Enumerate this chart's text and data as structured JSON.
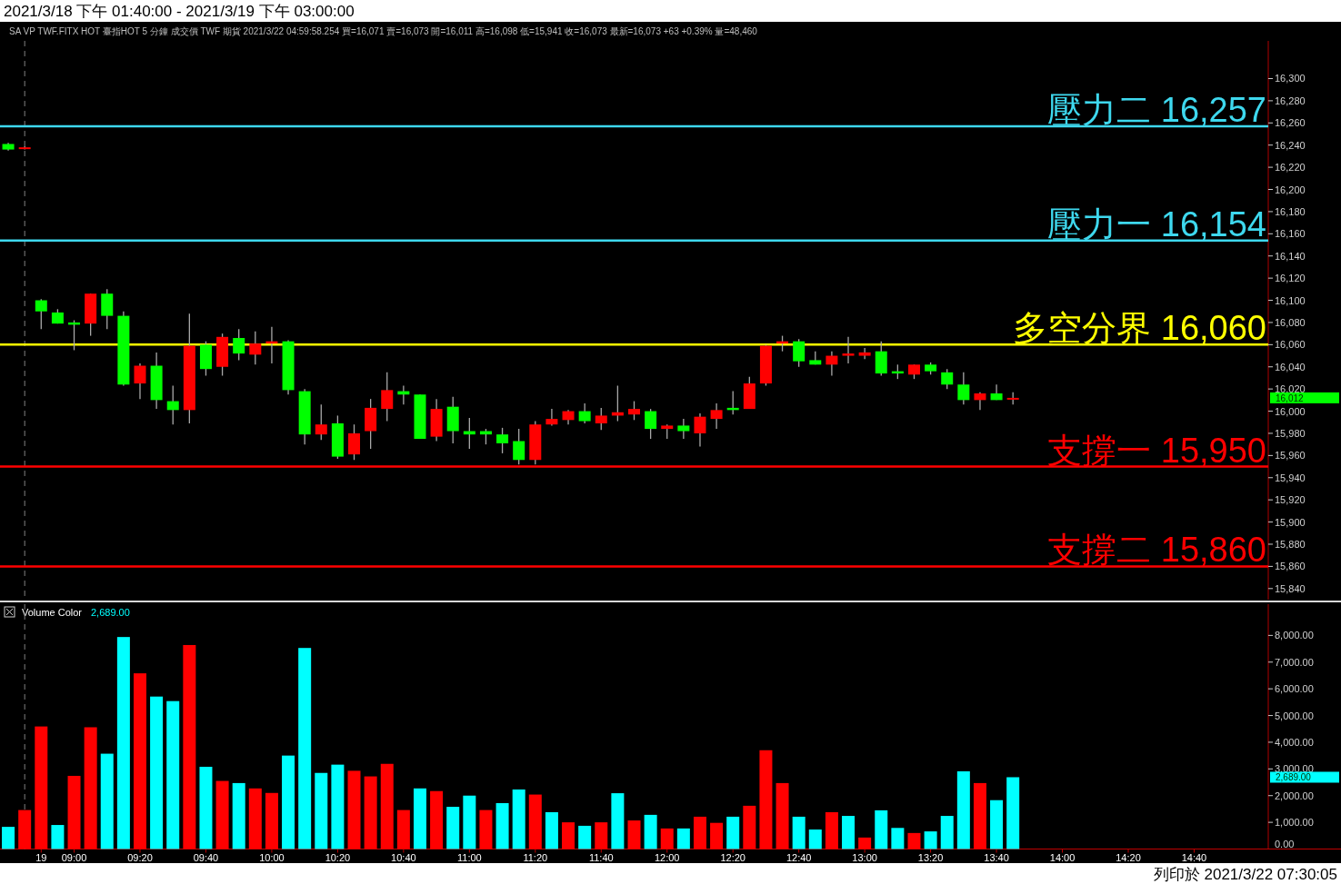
{
  "chart_data": [
    {
      "type": "candlestick",
      "title": "2021/3/18 下午 01:40:00 - 2021/3/19 下午 03:00:00",
      "subtitle": "SA  VP  TWF.FITX HOT  臺指HOT 5 分鐘  成交價  TWF  期貨  2021/3/22  04:59:58.254  買=16,071  賣=16,073  開=16,011  高=16,098  低=15,941  收=16,073  最新=16,073  +63  +0.39%  量=48,460",
      "categories": [
        null,
        null,
        null,
        null,
        null,
        null,
        null,
        null,
        null,
        null,
        null,
        null,
        null,
        null,
        null,
        null,
        null,
        null,
        null,
        null,
        null,
        null,
        null,
        null,
        null,
        null,
        null,
        null,
        null,
        null,
        null,
        null,
        null,
        null,
        null,
        null,
        null,
        null,
        null,
        null,
        null,
        null,
        null,
        null,
        null,
        null,
        null,
        null,
        null,
        null,
        null,
        null,
        null,
        null,
        null,
        null,
        null,
        null,
        null,
        null,
        null,
        null,
        null,
        null,
        null,
        null,
        null,
        null,
        null,
        null,
        null,
        null,
        null,
        null,
        null,
        null,
        null
      ],
      "ohlc": [
        [
          16241,
          16242,
          16235,
          16236
        ],
        [
          16237,
          16239,
          16236,
          16238
        ],
        [
          16100,
          16101,
          16074,
          16090
        ],
        [
          16089,
          16092,
          16079,
          16079
        ],
        [
          16080,
          16082,
          16055,
          16078
        ],
        [
          16079,
          16106,
          16068,
          16106
        ],
        [
          16106,
          16110,
          16074,
          16086
        ],
        [
          16086,
          16090,
          16023,
          16024
        ],
        [
          16025,
          16043,
          16011,
          16041
        ],
        [
          16041,
          16053,
          16002,
          16010
        ],
        [
          16009,
          16023,
          15988,
          16001
        ],
        [
          16001,
          16088,
          15989,
          16059
        ],
        [
          16060,
          16063,
          16032,
          16038
        ],
        [
          16040,
          16070,
          16032,
          16067
        ],
        [
          16066,
          16074,
          16046,
          16052
        ],
        [
          16051,
          16072,
          16042,
          16061
        ],
        [
          16061,
          16076,
          16043,
          16063
        ],
        [
          16063,
          16064,
          16015,
          16019
        ],
        [
          16018,
          16020,
          15970,
          15979
        ],
        [
          15979,
          16006,
          15974,
          15988
        ],
        [
          15989,
          15996,
          15957,
          15959
        ],
        [
          15961,
          15988,
          15956,
          15980
        ],
        [
          15982,
          16011,
          15966,
          16003
        ],
        [
          16002,
          16035,
          15991,
          16019
        ],
        [
          16018,
          16023,
          16006,
          16015
        ],
        [
          16015,
          16015,
          15975,
          15975
        ],
        [
          15977,
          16011,
          15973,
          16002
        ],
        [
          16004,
          16013,
          15971,
          15982
        ],
        [
          15982,
          15994,
          15966,
          15979
        ],
        [
          15982,
          15984,
          15970,
          15979
        ],
        [
          15979,
          15985,
          15962,
          15971
        ],
        [
          15973,
          15984,
          15952,
          15956
        ],
        [
          15956,
          15991,
          15952,
          15988
        ],
        [
          15988,
          16002,
          15987,
          15993
        ],
        [
          15992,
          16001,
          15988,
          16000
        ],
        [
          16000,
          16007,
          15989,
          15991
        ],
        [
          15989,
          16003,
          15983,
          15996
        ],
        [
          15996,
          16023,
          15991,
          15999
        ],
        [
          15997,
          16009,
          15992,
          16002
        ],
        [
          16000,
          16002,
          15975,
          15984
        ],
        [
          15984,
          15988,
          15975,
          15987
        ],
        [
          15987,
          15993,
          15975,
          15982
        ],
        [
          15980,
          15998,
          15968,
          15995
        ],
        [
          15993,
          16007,
          15984,
          16001
        ],
        [
          16003,
          16018,
          15997,
          16001
        ],
        [
          16002,
          16031,
          16002,
          16025
        ],
        [
          16025,
          16060,
          16023,
          16059
        ],
        [
          16061,
          16068,
          16054,
          16063
        ],
        [
          16063,
          16065,
          16040,
          16045
        ],
        [
          16046,
          16054,
          16042,
          16042
        ],
        [
          16042,
          16054,
          16032,
          16050
        ],
        [
          16050,
          16067,
          16043,
          16052
        ],
        [
          16050,
          16057,
          16047,
          16053
        ],
        [
          16054,
          16063,
          16032,
          16034
        ],
        [
          16036,
          16042,
          16029,
          16034
        ],
        [
          16033,
          16042,
          16029,
          16042
        ],
        [
          16042,
          16044,
          16033,
          16036
        ],
        [
          16035,
          16038,
          16020,
          16024
        ],
        [
          16024,
          16035,
          16006,
          16010
        ],
        [
          16010,
          16017,
          16001,
          16016
        ],
        [
          16016,
          16024,
          16010,
          16010
        ],
        [
          16011,
          16017,
          16006,
          16012
        ],
        null,
        null,
        null,
        null,
        null,
        null,
        null,
        null,
        null,
        null,
        null,
        null,
        null,
        null,
        null
      ],
      "colors": [
        "#00ff00",
        "#ff0000",
        "#00ff00",
        "#00ff00",
        "#00ff00",
        "#ff0000",
        "#00ff00",
        "#00ff00",
        "#ff0000",
        "#00ff00",
        "#00ff00",
        "#ff0000",
        "#00ff00",
        "#ff0000",
        "#00ff00",
        "#ff0000",
        "#ff0000",
        "#00ff00",
        "#00ff00",
        "#ff0000",
        "#00ff00",
        "#ff0000",
        "#ff0000",
        "#ff0000",
        "#00ff00",
        "#00ff00",
        "#ff0000",
        "#00ff00",
        "#00ff00",
        "#00ff00",
        "#00ff00",
        "#00ff00",
        "#ff0000",
        "#ff0000",
        "#ff0000",
        "#00ff00",
        "#ff0000",
        "#ff0000",
        "#ff0000",
        "#00ff00",
        "#ff0000",
        "#00ff00",
        "#ff0000",
        "#ff0000",
        "#00ff00",
        "#ff0000",
        "#ff0000",
        "#ff0000",
        "#00ff00",
        "#00ff00",
        "#ff0000",
        "#ff0000",
        "#ff0000",
        "#00ff00",
        "#00ff00",
        "#ff0000",
        "#00ff00",
        "#00ff00",
        "#00ff00",
        "#ff0000",
        "#00ff00",
        "#ff0000",
        null,
        null,
        null,
        null,
        null,
        null,
        null,
        null,
        null,
        null,
        null,
        null,
        null,
        null,
        null
      ],
      "ylim": [
        15830,
        16334
      ],
      "yticks": [
        {
          "value": 15840,
          "label": "15,840"
        },
        {
          "value": 15860,
          "label": "15,860"
        },
        {
          "value": 15880,
          "label": "15,880"
        },
        {
          "value": 15900,
          "label": "15,900"
        },
        {
          "value": 15920,
          "label": "15,920"
        },
        {
          "value": 15940,
          "label": "15,940"
        },
        {
          "value": 15960,
          "label": "15,960"
        },
        {
          "value": 15980,
          "label": "15,980"
        },
        {
          "value": 16000,
          "label": "16,000"
        },
        {
          "value": 16020,
          "label": "16,020"
        },
        {
          "value": 16040,
          "label": "16,040"
        },
        {
          "value": 16060,
          "label": "16,060"
        },
        {
          "value": 16080,
          "label": "16,080"
        },
        {
          "value": 16100,
          "label": "16,100"
        },
        {
          "value": 16120,
          "label": "16,120"
        },
        {
          "value": 16140,
          "label": "16,140"
        },
        {
          "value": 16160,
          "label": "16,160"
        },
        {
          "value": 16180,
          "label": "16,180"
        },
        {
          "value": 16200,
          "label": "16,200"
        },
        {
          "value": 16220,
          "label": "16,220"
        },
        {
          "value": 16240,
          "label": "16,240"
        },
        {
          "value": 16260,
          "label": "16,260"
        },
        {
          "value": 16280,
          "label": "16,280"
        },
        {
          "value": 16300,
          "label": "16,300"
        }
      ],
      "ref_lines": [
        {
          "axis": "y",
          "value": 16257,
          "label": "壓力二 16,257",
          "color": "#3ed8ee"
        },
        {
          "axis": "y",
          "value": 16154,
          "label": "壓力一 16,154",
          "color": "#3ed8ee"
        },
        {
          "axis": "y",
          "value": 16060,
          "label": "多空分界 16,060",
          "color": "#ffff00"
        },
        {
          "axis": "y",
          "value": 15950,
          "label": "支撐一 15,950",
          "color": "#ff0000"
        },
        {
          "axis": "y",
          "value": 15860,
          "label": "支撐二 15,860",
          "color": "#ff0000"
        }
      ],
      "annotations": [
        "16,012"
      ],
      "tick_labels": "y"
    },
    {
      "type": "bar",
      "title": "Volume Color",
      "subtitle": "2,689.00",
      "categories": [
        null,
        null,
        "19",
        null,
        "09:00",
        null,
        null,
        null,
        "09:20",
        null,
        null,
        null,
        "09:40",
        null,
        null,
        null,
        "10:00",
        null,
        null,
        null,
        "10:20",
        null,
        null,
        null,
        "10:40",
        null,
        null,
        null,
        "11:00",
        null,
        null,
        null,
        "11:20",
        null,
        null,
        null,
        "11:40",
        null,
        null,
        null,
        "12:00",
        null,
        null,
        null,
        "12:20",
        null,
        null,
        null,
        "12:40",
        null,
        null,
        null,
        "13:00",
        null,
        null,
        null,
        "13:20",
        null,
        null,
        null,
        "13:40",
        null,
        null,
        null,
        "14:00",
        null,
        null,
        null,
        "14:20",
        null,
        null,
        null,
        "14:40",
        null,
        null,
        null,
        null
      ],
      "values": [
        830,
        1460,
        4590,
        900,
        2740,
        4560,
        3570,
        7940,
        6580,
        5710,
        5540,
        7640,
        3080,
        2550,
        2470,
        2270,
        2100,
        3500,
        7530,
        2850,
        3160,
        2930,
        2720,
        3190,
        1460,
        2270,
        2170,
        1580,
        2000,
        1460,
        1720,
        2230,
        2040,
        1380,
        1000,
        870,
        1000,
        2090,
        1070,
        1280,
        770,
        770,
        1210,
        980,
        1210,
        1620,
        3700,
        2470,
        1210,
        730,
        1380,
        1240,
        430,
        1450,
        790,
        600,
        660,
        1240,
        2910,
        2470,
        1830,
        2689,
        null,
        null,
        null,
        null,
        null,
        null,
        null,
        null,
        null,
        null,
        null,
        null,
        null,
        null,
        null
      ],
      "colors": [
        "#00ffff",
        "#ff0000",
        "#ff0000",
        "#00ffff",
        "#ff0000",
        "#ff0000",
        "#00ffff",
        "#00ffff",
        "#ff0000",
        "#00ffff",
        "#00ffff",
        "#ff0000",
        "#00ffff",
        "#ff0000",
        "#00ffff",
        "#ff0000",
        "#ff0000",
        "#00ffff",
        "#00ffff",
        "#00ffff",
        "#00ffff",
        "#ff0000",
        "#ff0000",
        "#ff0000",
        "#ff0000",
        "#00ffff",
        "#ff0000",
        "#00ffff",
        "#00ffff",
        "#ff0000",
        "#00ffff",
        "#00ffff",
        "#ff0000",
        "#00ffff",
        "#ff0000",
        "#00ffff",
        "#ff0000",
        "#00ffff",
        "#ff0000",
        "#00ffff",
        "#ff0000",
        "#00ffff",
        "#ff0000",
        "#ff0000",
        "#00ffff",
        "#ff0000",
        "#ff0000",
        "#ff0000",
        "#00ffff",
        "#00ffff",
        "#ff0000",
        "#00ffff",
        "#ff0000",
        "#00ffff",
        "#00ffff",
        "#ff0000",
        "#00ffff",
        "#00ffff",
        "#00ffff",
        "#ff0000",
        "#00ffff",
        "#00ffff",
        null,
        null,
        null,
        null,
        null,
        null,
        null,
        null,
        null,
        null,
        null,
        null,
        null,
        null,
        null
      ],
      "ylim": [
        0,
        9170
      ],
      "yticks": [
        {
          "value": 0,
          "label": "0.00"
        },
        {
          "value": 1000,
          "label": "1,000.00"
        },
        {
          "value": 2000,
          "label": "2,000.00"
        },
        {
          "value": 3000,
          "label": "3,000.00"
        },
        {
          "value": 4000,
          "label": "4,000.00"
        },
        {
          "value": 5000,
          "label": "5,000.00"
        },
        {
          "value": 6000,
          "label": "6,000.00"
        },
        {
          "value": 7000,
          "label": "7,000.00"
        },
        {
          "value": 8000,
          "label": "8,000.00"
        }
      ],
      "annotations": [
        "2,689.00",
        "列印於 2021/3/22 07:30:05"
      ]
    }
  ]
}
